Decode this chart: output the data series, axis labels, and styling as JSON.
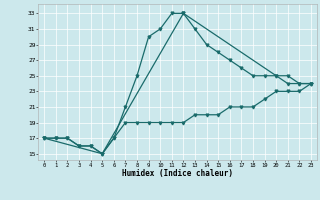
{
  "xlabel": "Humidex (Indice chaleur)",
  "bg_color": "#cce8ec",
  "line_color": "#1a6b6b",
  "xlim": [
    -0.5,
    23.5
  ],
  "ylim": [
    14.2,
    34.2
  ],
  "xticks": [
    0,
    1,
    2,
    3,
    4,
    5,
    6,
    7,
    8,
    9,
    10,
    11,
    12,
    13,
    14,
    15,
    16,
    17,
    18,
    19,
    20,
    21,
    22,
    23
  ],
  "yticks": [
    15,
    17,
    19,
    21,
    23,
    25,
    27,
    29,
    31,
    33
  ],
  "curve1_x": [
    0,
    1,
    2,
    3,
    4,
    5,
    6,
    7,
    8,
    9,
    10,
    11,
    12,
    13,
    14,
    15,
    16,
    17,
    18,
    19,
    20,
    21,
    22,
    23
  ],
  "curve1_y": [
    17,
    17,
    17,
    16,
    16,
    15,
    17,
    21,
    25,
    30,
    31,
    33,
    33,
    31,
    29,
    28,
    27,
    26,
    25,
    25,
    25,
    24,
    24,
    24
  ],
  "curve2_x": [
    0,
    1,
    2,
    3,
    4,
    5,
    6,
    7,
    8,
    9,
    10,
    11,
    12,
    13,
    14,
    15,
    16,
    17,
    18,
    19,
    20,
    21,
    22,
    23
  ],
  "curve2_y": [
    17,
    17,
    17,
    16,
    16,
    15,
    17,
    19,
    19,
    19,
    19,
    19,
    19,
    20,
    20,
    20,
    21,
    21,
    21,
    22,
    23,
    23,
    23,
    24
  ],
  "curve3_x": [
    0,
    5,
    12,
    20,
    21,
    22,
    23
  ],
  "curve3_y": [
    17,
    15,
    33,
    25,
    25,
    24,
    24
  ],
  "figsize": [
    3.2,
    2.0
  ],
  "dpi": 100
}
